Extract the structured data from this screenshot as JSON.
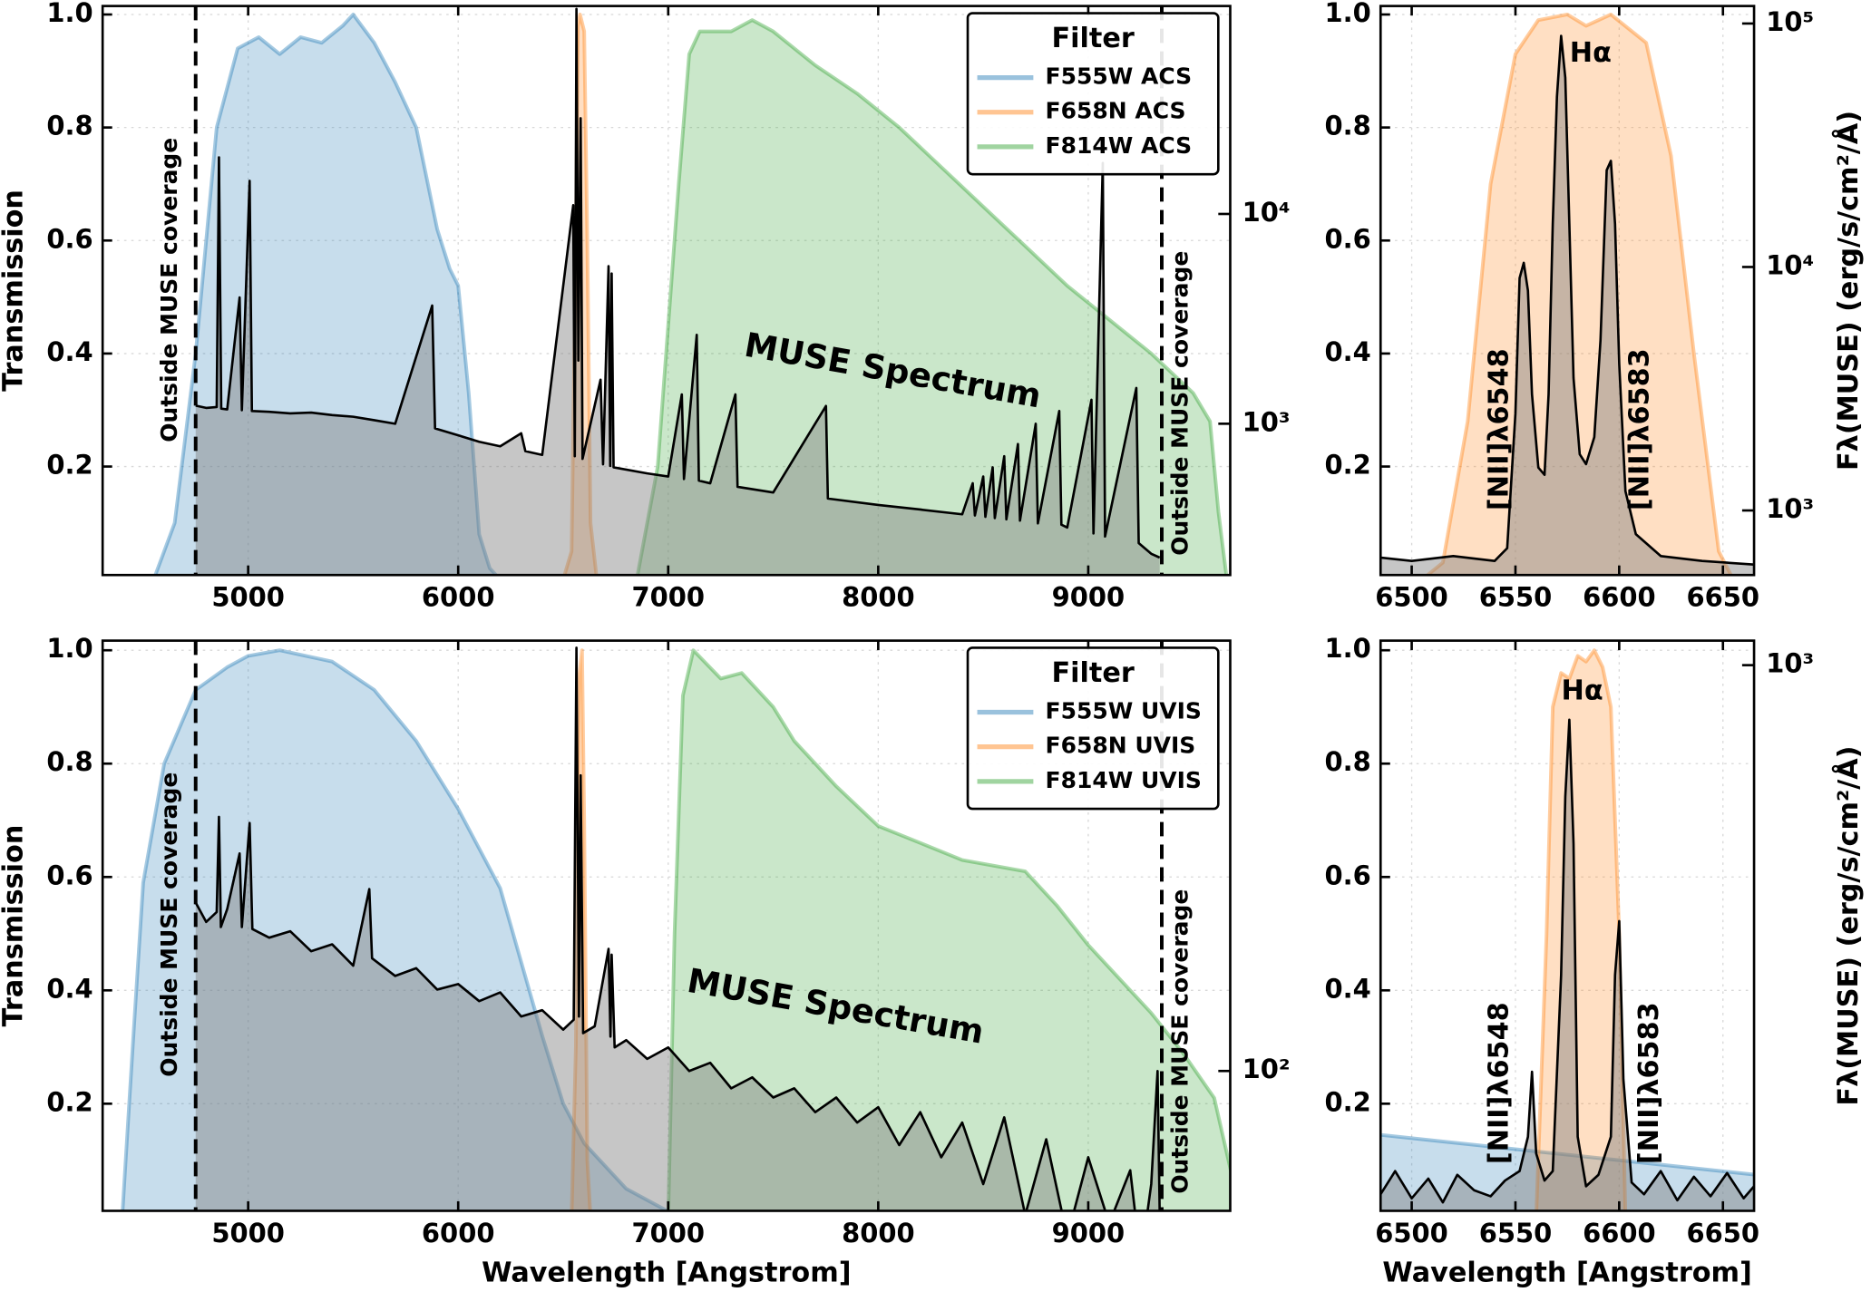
{
  "chart_data": [
    {
      "type": "area",
      "y_label": "Transmission",
      "legend": "upper right",
      "legend_title": "Filter",
      "grid": true,
      "xlim": [
        4307,
        9676
      ],
      "xticks": [
        5000,
        6000,
        7000,
        8000,
        9000
      ],
      "ylim": [
        0.008,
        1.015
      ],
      "yticks": [
        0.2,
        0.4,
        0.6,
        0.8,
        {
          "value": 1,
          "label": "1.0"
        }
      ],
      "y2lim": [
        190,
        98000
      ],
      "y2scale": "log",
      "y2ticks": [
        {
          "value": 1000,
          "label": "10³"
        },
        {
          "value": 10000,
          "label": "10⁴"
        }
      ],
      "muse_coverage": [
        4750,
        9350
      ],
      "annotations": [
        "Outside MUSE coverage",
        "Outside MUSE coverage",
        "MUSE Spectrum"
      ],
      "series": [
        {
          "name": "F555W ACS",
          "color": "#1f77b4",
          "x": [
            4550,
            4650,
            4750,
            4850,
            4950,
            5050,
            5150,
            5250,
            5350,
            5450,
            5500,
            5600,
            5700,
            5800,
            5900,
            5960,
            6000,
            6050,
            6100,
            6150,
            6200
          ],
          "values": [
            0,
            0.1,
            0.4,
            0.8,
            0.94,
            0.96,
            0.93,
            0.96,
            0.95,
            0.98,
            1.0,
            0.95,
            0.88,
            0.8,
            0.62,
            0.55,
            0.52,
            0.33,
            0.08,
            0.02,
            0
          ]
        },
        {
          "name": "F658N ACS",
          "color": "#ff7f0e",
          "x": [
            6500,
            6540,
            6560,
            6570,
            6580,
            6600,
            6615,
            6630,
            6660
          ],
          "values": [
            0,
            0.05,
            0.6,
            0.98,
            1.0,
            0.97,
            0.6,
            0.1,
            0
          ]
        },
        {
          "name": "F814W ACS",
          "color": "#2ca02c",
          "x": [
            6850,
            6950,
            7000,
            7050,
            7100,
            7150,
            7300,
            7400,
            7500,
            7700,
            7900,
            8100,
            8300,
            8500,
            8700,
            8900,
            9100,
            9300,
            9500,
            9580,
            9620,
            9660
          ],
          "values": [
            0,
            0.2,
            0.45,
            0.7,
            0.93,
            0.97,
            0.97,
            0.99,
            0.97,
            0.91,
            0.86,
            0.8,
            0.73,
            0.66,
            0.59,
            0.52,
            0.46,
            0.4,
            0.33,
            0.28,
            0.12,
            0
          ]
        },
        {
          "color": "#000000",
          "axis": "y2",
          "x": [
            4750,
            4800,
            4850,
            4861,
            4872,
            4900,
            4959,
            4970,
            5007,
            5018,
            5100,
            5200,
            5300,
            5400,
            5500,
            5600,
            5700,
            5876,
            5890,
            6000,
            6100,
            6200,
            6300,
            6320,
            6400,
            6548,
            6555,
            6563,
            6572,
            6583,
            6592,
            6678,
            6690,
            6716,
            6724,
            6731,
            6740,
            6900,
            7000,
            7065,
            7075,
            7136,
            7146,
            7200,
            7320,
            7330,
            7500,
            7751,
            7760,
            8000,
            8200,
            8400,
            8450,
            8460,
            8500,
            8510,
            8545,
            8555,
            8600,
            8610,
            8665,
            8675,
            8750,
            8760,
            8862,
            8872,
            8900,
            9015,
            9025,
            9069,
            9080,
            9229,
            9240,
            9300,
            9340
          ],
          "values": [
            1220,
            1190,
            1200,
            18600,
            1180,
            1170,
            4000,
            1160,
            14400,
            1150,
            1140,
            1120,
            1130,
            1100,
            1080,
            1040,
            1000,
            3660,
            950,
            880,
            820,
            780,
            900,
            740,
            710,
            11000,
            700,
            95000,
            2000,
            28600,
            680,
            1620,
            640,
            5640,
            630,
            5200,
            620,
            580,
            560,
            1380,
            545,
            2650,
            535,
            520,
            1380,
            500,
            470,
            1215,
            440,
            410,
            390,
            370,
            520,
            365,
            560,
            360,
            620,
            355,
            700,
            350,
            800,
            345,
            1000,
            335,
            1150,
            330,
            320,
            1300,
            300,
            17500,
            290,
            1480,
            270,
            240,
            230
          ]
        }
      ]
    },
    {
      "type": "area",
      "y2_label": "Fλ(MUSE) (erg/s/cm²/Å)",
      "grid": true,
      "xlim": [
        6485,
        6665
      ],
      "xticks": [
        6500,
        6550,
        6600,
        6650
      ],
      "ylim": [
        0.008,
        1.015
      ],
      "yticks": [
        0.2,
        0.4,
        0.6,
        0.8,
        {
          "value": 1,
          "label": "1.0"
        }
      ],
      "y2lim": [
        543,
        118000
      ],
      "y2scale": "log",
      "y2ticks": [
        {
          "value": 1000,
          "label": "10³"
        },
        {
          "value": 10000,
          "label": "10⁴"
        },
        {
          "value": 100000,
          "label": "10⁵"
        }
      ],
      "annotations": [
        "Hα",
        "[NII]λ6548",
        "[NII]λ6583"
      ],
      "series": [
        {
          "color": "#ff7f0e",
          "x": [
            6505,
            6515,
            6527,
            6538,
            6550,
            6561,
            6575,
            6584,
            6596,
            6613,
            6625,
            6636,
            6648,
            6655
          ],
          "values": [
            0,
            0.03,
            0.28,
            0.7,
            0.93,
            0.99,
            1.0,
            0.98,
            1.0,
            0.95,
            0.75,
            0.4,
            0.05,
            0
          ]
        },
        {
          "color": "#000000",
          "axis": "y2",
          "x": [
            6485,
            6500,
            6520,
            6540,
            6546,
            6550,
            6552,
            6554,
            6556,
            6558,
            6561,
            6564,
            6566,
            6568,
            6570,
            6572,
            6574,
            6576,
            6578,
            6581,
            6584,
            6588,
            6591,
            6594,
            6596,
            6598,
            6600,
            6603,
            6608,
            6620,
            6640,
            6665
          ],
          "values": [
            640,
            620,
            650,
            620,
            700,
            2500,
            9000,
            10400,
            8000,
            3000,
            1500,
            1400,
            3000,
            15000,
            50000,
            89000,
            60000,
            15000,
            3500,
            1700,
            1550,
            2000,
            5000,
            25000,
            27300,
            15000,
            4000,
            1200,
            800,
            650,
            620,
            600
          ]
        }
      ]
    },
    {
      "type": "area",
      "x_label": "Wavelength [Angstrom]",
      "y_label": "Transmission",
      "legend": "upper right",
      "legend_title": "Filter",
      "grid": true,
      "xlim": [
        4307,
        9676
      ],
      "xticks": [
        5000,
        6000,
        7000,
        8000,
        9000
      ],
      "ylim": [
        0.011,
        1.017
      ],
      "yticks": [
        0.2,
        0.4,
        0.6,
        0.8,
        {
          "value": 1,
          "label": "1.0"
        }
      ],
      "y2lim": [
        51,
        794
      ],
      "y2scale": "log",
      "y2ticks": [
        {
          "value": 100,
          "label": "10²"
        }
      ],
      "muse_coverage": [
        4750,
        9350
      ],
      "annotations": [
        "Outside MUSE coverage",
        "Outside MUSE coverage",
        "MUSE Spectrum"
      ],
      "series": [
        {
          "name": "F555W UVIS",
          "color": "#1f77b4",
          "x": [
            4400,
            4450,
            4500,
            4600,
            4750,
            4900,
            5000,
            5150,
            5400,
            5600,
            5800,
            5900,
            6000,
            6200,
            6300,
            6400,
            6500,
            6600,
            6800,
            7000,
            7100
          ],
          "values": [
            0,
            0.3,
            0.59,
            0.8,
            0.93,
            0.97,
            0.99,
            1.0,
            0.98,
            0.93,
            0.84,
            0.78,
            0.72,
            0.58,
            0.45,
            0.32,
            0.2,
            0.13,
            0.05,
            0.01,
            0
          ]
        },
        {
          "name": "F658N UVIS",
          "color": "#ff7f0e",
          "x": [
            6540,
            6560,
            6575,
            6590,
            6600,
            6615,
            6630
          ],
          "values": [
            0,
            0.3,
            0.95,
            1.0,
            0.7,
            0.1,
            0
          ]
        },
        {
          "name": "F814W UVIS",
          "color": "#2ca02c",
          "x": [
            7000,
            7030,
            7070,
            7120,
            7250,
            7350,
            7500,
            7600,
            7800,
            8000,
            8200,
            8400,
            8700,
            8850,
            9000,
            9150,
            9300,
            9450,
            9600,
            9680
          ],
          "values": [
            0,
            0.5,
            0.92,
            1.0,
            0.95,
            0.96,
            0.9,
            0.84,
            0.76,
            0.69,
            0.66,
            0.63,
            0.61,
            0.55,
            0.48,
            0.42,
            0.36,
            0.29,
            0.21,
            0.08
          ]
        },
        {
          "color": "#000000",
          "axis": "y2",
          "x": [
            4750,
            4800,
            4850,
            4861,
            4870,
            4900,
            4959,
            4970,
            5007,
            5020,
            5100,
            5200,
            5300,
            5400,
            5500,
            5577,
            5590,
            5700,
            5800,
            5900,
            6000,
            6100,
            6200,
            6300,
            6400,
            6500,
            6550,
            6563,
            6575,
            6583,
            6595,
            6650,
            6716,
            6725,
            6731,
            6745,
            6800,
            6900,
            7000,
            7100,
            7200,
            7300,
            7400,
            7500,
            7600,
            7700,
            7800,
            7900,
            8000,
            8100,
            8200,
            8300,
            8400,
            8500,
            8600,
            8700,
            8800,
            8900,
            9000,
            9100,
            9200,
            9250,
            9300,
            9330,
            9340
          ],
          "values": [
            225,
            205,
            215,
            340,
            200,
            218,
            285,
            200,
            330,
            198,
            190,
            196,
            178,
            184,
            166,
            240,
            172,
            158,
            164,
            148,
            152,
            140,
            146,
            130,
            134,
            122,
            128,
            767,
            130,
            415,
            120,
            124,
            180,
            118,
            175,
            112,
            116,
            106,
            112,
            100,
            104,
            92,
            97,
            88,
            92,
            82,
            88,
            78,
            84,
            70,
            82,
            66,
            78,
            58,
            80,
            50,
            72,
            45,
            66,
            48,
            62,
            40,
            58,
            100,
            50
          ]
        }
      ]
    },
    {
      "type": "area",
      "x_label": "Wavelength [Angstrom]",
      "y2_label": "Fλ(MUSE) (erg/s/cm²/Å)",
      "grid": true,
      "xlim": [
        6485,
        6665
      ],
      "xticks": [
        6500,
        6550,
        6600,
        6650
      ],
      "ylim": [
        0.011,
        1.017
      ],
      "yticks": [
        0.2,
        0.4,
        0.6,
        0.8,
        {
          "value": 1,
          "label": "1.0"
        }
      ],
      "y2lim": [
        120,
        1100
      ],
      "y2scale": "log",
      "y2ticks": [
        {
          "value": 1000,
          "label": "10³"
        }
      ],
      "annotations": [
        "Hα",
        "[NII]λ6548",
        "[NII]λ6583"
      ],
      "series": [
        {
          "color": "#1f77b4",
          "x": [
            6485,
            6665
          ],
          "values": [
            0.145,
            0.075
          ]
        },
        {
          "color": "#ff7f0e",
          "x": [
            6560,
            6565,
            6568,
            6572,
            6576,
            6580,
            6584,
            6588,
            6592,
            6596,
            6600,
            6603
          ],
          "values": [
            0,
            0.5,
            0.9,
            0.96,
            0.95,
            0.99,
            0.98,
            1.0,
            0.97,
            0.9,
            0.5,
            0
          ]
        },
        {
          "color": "#000000",
          "axis": "y2",
          "x": [
            6485,
            6492,
            6500,
            6508,
            6515,
            6522,
            6530,
            6538,
            6545,
            6552,
            6556,
            6558,
            6560,
            6564,
            6568,
            6572,
            6574,
            6576,
            6578,
            6580,
            6584,
            6590,
            6596,
            6598,
            6600,
            6602,
            6606,
            6612,
            6620,
            6628,
            6636,
            6644,
            6652,
            6660,
            6665
          ],
          "values": [
            128,
            140,
            126,
            136,
            124,
            138,
            130,
            127,
            135,
            140,
            160,
            206,
            150,
            135,
            140,
            300,
            600,
            809,
            500,
            160,
            132,
            138,
            160,
            300,
            370,
            200,
            134,
            128,
            140,
            125,
            137,
            127,
            139,
            126,
            132
          ]
        }
      ]
    }
  ]
}
